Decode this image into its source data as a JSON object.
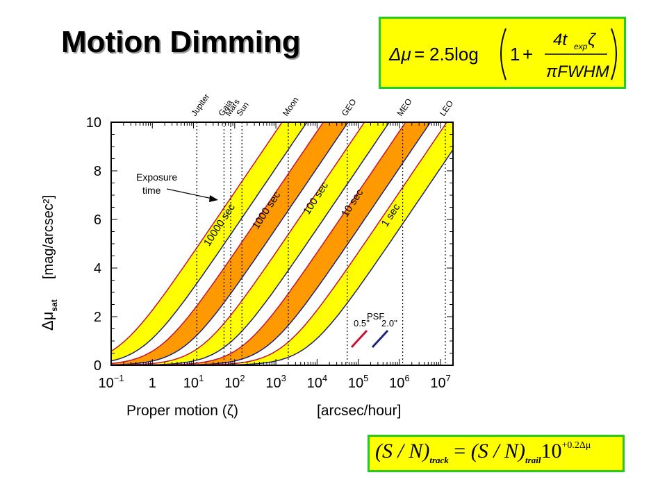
{
  "slide": {
    "title": "Motion Dimming"
  },
  "formulas": {
    "dimming": {
      "lhs": "Δμ",
      "eq": "=",
      "coef": "2.5log",
      "one": "1",
      "plus": "+",
      "num": "4t",
      "num_sub": "exp",
      "num_tail": "ζ",
      "den": "πFWHM"
    },
    "snr": {
      "lhs": "(S / N)",
      "lhs_sub": "track",
      "eq": "=",
      "rhs": "(S / N)",
      "rhs_sub": "trail",
      "base": "10",
      "exp": "+0.2Δμ"
    }
  },
  "colors": {
    "yellow_band": "#ffff00",
    "orange_band": "#ff9900",
    "red_line": "#c8102e",
    "blue_line": "#1a237e",
    "box_border": "#22cc22"
  },
  "chart_data": {
    "type": "line",
    "xlabel": "Proper motion (ζ)",
    "xlabel_units": "[arcsec/hour]",
    "ylabel": "Δμ",
    "ylabel_sub": "sat",
    "ylabel_units": "[mag/arcsec²]",
    "x_scale": "log",
    "xlim": [
      0.1,
      20000000
    ],
    "ylim": [
      0,
      10
    ],
    "x_ticks": [
      {
        "base": "10",
        "exp": "−1",
        "value": 0.1
      },
      {
        "base": "1",
        "exp": "",
        "value": 1
      },
      {
        "base": "10",
        "exp": "1",
        "value": 10
      },
      {
        "base": "10",
        "exp": "2",
        "value": 100
      },
      {
        "base": "10",
        "exp": "3",
        "value": 1000
      },
      {
        "base": "10",
        "exp": "4",
        "value": 10000
      },
      {
        "base": "10",
        "exp": "5",
        "value": 100000
      },
      {
        "base": "10",
        "exp": "6",
        "value": 1000000
      },
      {
        "base": "10",
        "exp": "7",
        "value": 10000000
      }
    ],
    "y_ticks": [
      "0",
      "2",
      "4",
      "6",
      "8",
      "10"
    ],
    "reference_lines": [
      {
        "label": "Jupiter",
        "x": 12
      },
      {
        "label": "Gaia",
        "x": 55
      },
      {
        "label": "Mars",
        "x": 80
      },
      {
        "label": "Sun",
        "x": 150
      },
      {
        "label": "Moon",
        "x": 2000
      },
      {
        "label": "GEO",
        "x": 54000
      },
      {
        "label": "MEO",
        "x": 1200000
      },
      {
        "label": "LEO",
        "x": 13000000
      }
    ],
    "bands": [
      {
        "name": "10000 sec",
        "exposure_sec": 10000,
        "color": "yellow"
      },
      {
        "name": "1000 sec",
        "exposure_sec": 1000,
        "color": "orange"
      },
      {
        "name": "100 sec",
        "exposure_sec": 100,
        "color": "yellow"
      },
      {
        "name": "10 sec",
        "exposure_sec": 10,
        "color": "orange"
      },
      {
        "name": "1 sec",
        "exposure_sec": 1,
        "color": "yellow"
      }
    ],
    "curve_model": "Δμ = 2.5 log10(1 + 4·t_exp·ζ / (π·FWHM)), ζ in arcsec/hour",
    "psf_fwhm_arcsec": [
      {
        "label": "0.5''",
        "fwhm": 0.5,
        "line": "red"
      },
      {
        "label": "2.0''",
        "fwhm": 2.0,
        "line": "blue"
      }
    ],
    "psf_legend_title": "PSF",
    "annotation": "Exposure\ntime"
  }
}
